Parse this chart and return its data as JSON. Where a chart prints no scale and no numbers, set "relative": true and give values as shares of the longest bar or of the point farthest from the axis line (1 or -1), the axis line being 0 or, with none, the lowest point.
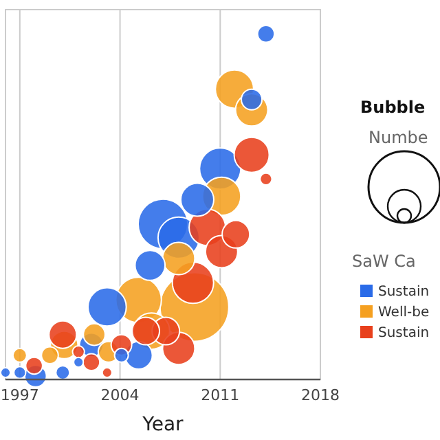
{
  "chart_data": {
    "type": "bubble",
    "relative": true,
    "xlabel": "Year",
    "legend_title": "SaW Ca",
    "legend": "right",
    "grid": "x",
    "xlim": [
      1996,
      2018
    ],
    "xticks": [
      1997,
      2004,
      2011,
      2018
    ],
    "annotations": [
      "Bubble",
      "Numbe"
    ],
    "series": [
      {
        "name": "Sustain",
        "color": "#2a6be8",
        "x": [
          2014.2,
          2013.2,
          2011.0,
          2007.0,
          2008.1,
          2009.4,
          2006.1,
          2003.1,
          2005.3,
          2004.1,
          2002.0,
          2000.0,
          2001.1,
          1998.1,
          1997.0,
          1996.0
        ],
        "values": [
          1.0,
          0.81,
          0.61,
          0.45,
          0.41,
          0.52,
          0.33,
          0.21,
          0.07,
          0.07,
          0.1,
          0.02,
          0.05,
          0.01,
          0.02,
          0.02
        ],
        "sizes": [
          0.06,
          0.09,
          0.36,
          0.52,
          0.36,
          0.23,
          0.19,
          0.31,
          0.16,
          0.04,
          0.12,
          0.04,
          0.02,
          0.1,
          0.03,
          0.02
        ]
      },
      {
        "name": "Well-be",
        "color": "#f5a020",
        "x": [
          2012.0,
          2013.2,
          2011.1,
          2008.1,
          2009.2,
          2005.3,
          2006.2,
          2003.2,
          2000.1,
          1999.1,
          1997.0,
          2002.2
        ],
        "values": [
          0.84,
          0.78,
          0.53,
          0.35,
          0.21,
          0.23,
          0.14,
          0.08,
          0.1,
          0.07,
          0.07,
          0.13
        ],
        "sizes": [
          0.31,
          0.22,
          0.31,
          0.22,
          1.0,
          0.44,
          0.28,
          0.09,
          0.16,
          0.06,
          0.04,
          0.1
        ]
      },
      {
        "name": "Sustain",
        "color": "#e8401c",
        "x": [
          2013.2,
          2014.2,
          2010.1,
          2011.1,
          2012.1,
          2009.1,
          2007.2,
          2008.1,
          2005.8,
          2004.1,
          2002.0,
          2003.1,
          2000.0,
          1998.0,
          2001.1
        ],
        "values": [
          0.65,
          0.58,
          0.44,
          0.37,
          0.42,
          0.28,
          0.14,
          0.09,
          0.14,
          0.1,
          0.05,
          0.02,
          0.13,
          0.04,
          0.08
        ],
        "sizes": [
          0.26,
          0.03,
          0.28,
          0.22,
          0.16,
          0.36,
          0.16,
          0.22,
          0.16,
          0.09,
          0.06,
          0.02,
          0.16,
          0.06,
          0.03
        ]
      }
    ]
  }
}
